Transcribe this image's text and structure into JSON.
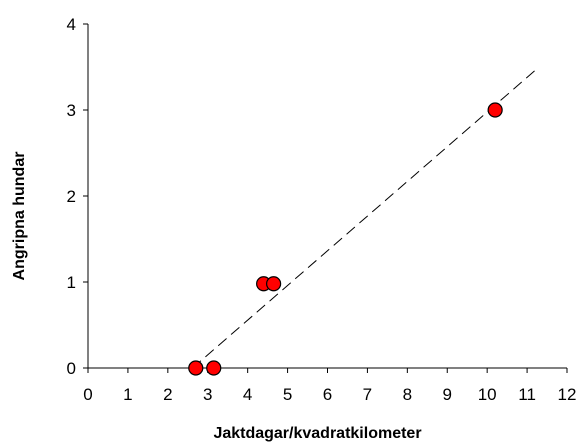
{
  "chart_data": {
    "type": "scatter",
    "title": "",
    "xlabel": "Jaktdagar/kvadratkilometer",
    "ylabel": "Angripna hundar",
    "xlim": [
      0,
      12
    ],
    "ylim": [
      0,
      4
    ],
    "xticks": [
      0,
      1,
      2,
      3,
      4,
      5,
      6,
      7,
      8,
      9,
      10,
      11,
      12
    ],
    "yticks": [
      0,
      1,
      2,
      3,
      4
    ],
    "grid": false,
    "legend": "none",
    "marker_color": "#ff0000",
    "marker_edge_color": "#000000",
    "trendline": {
      "style": "dashed",
      "color": "#000000",
      "x": [
        2.62,
        11.2
      ],
      "y": [
        0.0,
        3.46
      ]
    },
    "points": [
      {
        "x": 2.7,
        "y": 0
      },
      {
        "x": 3.15,
        "y": 0
      },
      {
        "x": 4.4,
        "y": 0.98
      },
      {
        "x": 4.65,
        "y": 0.98
      },
      {
        "x": 10.2,
        "y": 3.0
      }
    ]
  }
}
